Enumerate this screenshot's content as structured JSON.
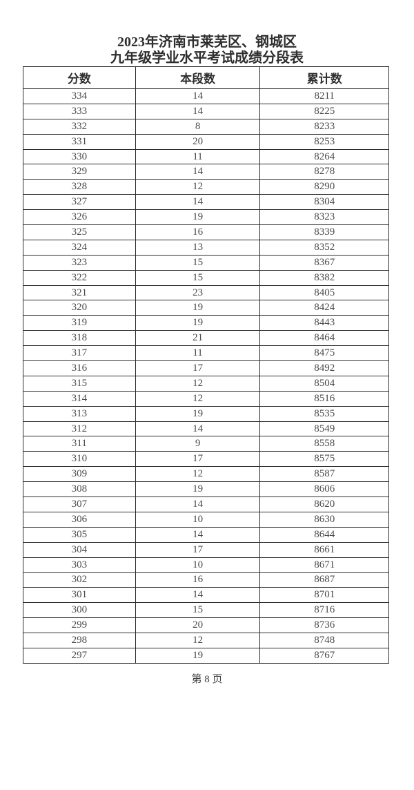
{
  "document": {
    "title_line1": "2023年济南市莱芜区、钢城区",
    "title_line2": "九年级学业水平考试成绩分段表",
    "footer_page_label": "第 8 页"
  },
  "colors": {
    "border": "#2b2b2b",
    "text": "#4a4a4a",
    "heading": "#2e2e2e",
    "background": "#ffffff"
  },
  "table": {
    "columns": [
      "分数",
      "本段数",
      "累计数"
    ],
    "column_names": [
      "score",
      "segment-count",
      "cumulative-count"
    ],
    "rows": [
      [
        "334",
        "14",
        "8211"
      ],
      [
        "333",
        "14",
        "8225"
      ],
      [
        "332",
        "8",
        "8233"
      ],
      [
        "331",
        "20",
        "8253"
      ],
      [
        "330",
        "11",
        "8264"
      ],
      [
        "329",
        "14",
        "8278"
      ],
      [
        "328",
        "12",
        "8290"
      ],
      [
        "327",
        "14",
        "8304"
      ],
      [
        "326",
        "19",
        "8323"
      ],
      [
        "325",
        "16",
        "8339"
      ],
      [
        "324",
        "13",
        "8352"
      ],
      [
        "323",
        "15",
        "8367"
      ],
      [
        "322",
        "15",
        "8382"
      ],
      [
        "321",
        "23",
        "8405"
      ],
      [
        "320",
        "19",
        "8424"
      ],
      [
        "319",
        "19",
        "8443"
      ],
      [
        "318",
        "21",
        "8464"
      ],
      [
        "317",
        "11",
        "8475"
      ],
      [
        "316",
        "17",
        "8492"
      ],
      [
        "315",
        "12",
        "8504"
      ],
      [
        "314",
        "12",
        "8516"
      ],
      [
        "313",
        "19",
        "8535"
      ],
      [
        "312",
        "14",
        "8549"
      ],
      [
        "311",
        "9",
        "8558"
      ],
      [
        "310",
        "17",
        "8575"
      ],
      [
        "309",
        "12",
        "8587"
      ],
      [
        "308",
        "19",
        "8606"
      ],
      [
        "307",
        "14",
        "8620"
      ],
      [
        "306",
        "10",
        "8630"
      ],
      [
        "305",
        "14",
        "8644"
      ],
      [
        "304",
        "17",
        "8661"
      ],
      [
        "303",
        "10",
        "8671"
      ],
      [
        "302",
        "16",
        "8687"
      ],
      [
        "301",
        "14",
        "8701"
      ],
      [
        "300",
        "15",
        "8716"
      ],
      [
        "299",
        "20",
        "8736"
      ],
      [
        "298",
        "12",
        "8748"
      ],
      [
        "297",
        "19",
        "8767"
      ]
    ]
  }
}
